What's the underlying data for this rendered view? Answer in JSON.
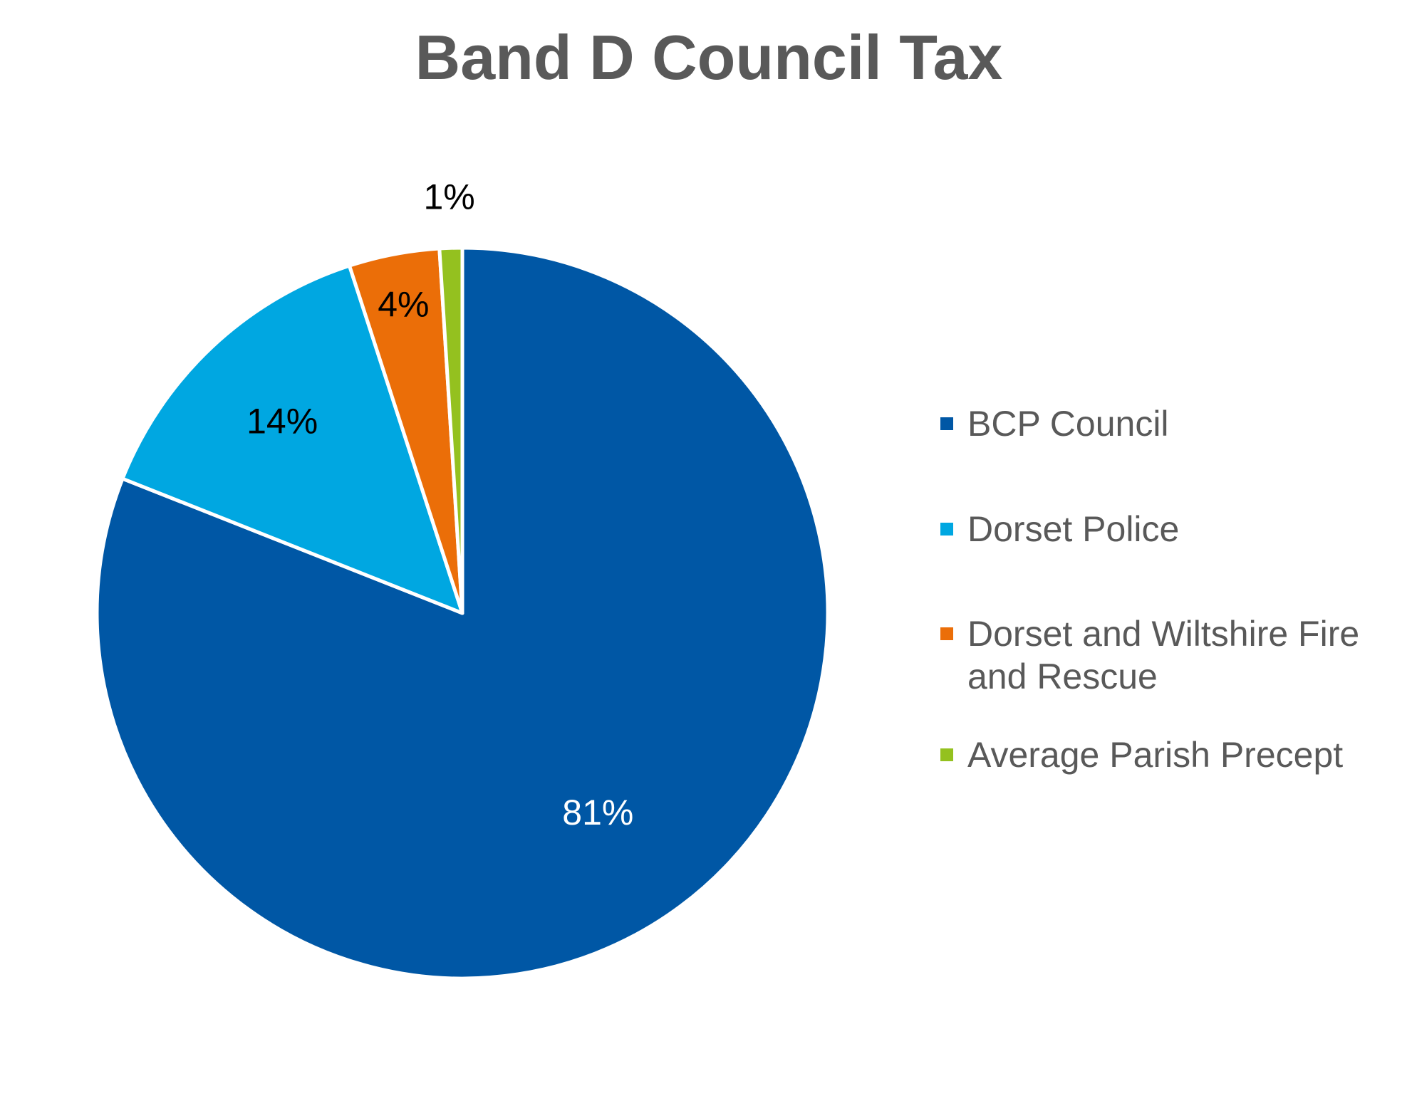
{
  "chart_data": {
    "type": "pie",
    "title": "Band D Council Tax",
    "start_angle": "12 o'clock",
    "direction": "clockwise",
    "legend_position": "right",
    "slices": [
      {
        "label": "BCP Council",
        "value": 81,
        "data_label": "81%",
        "color": "#0057A5",
        "label_color": "#ffffff"
      },
      {
        "label": "Dorset Police",
        "value": 14,
        "data_label": "14%",
        "color": "#00A7E1",
        "label_color": "#000000"
      },
      {
        "label": "Dorset and Wiltshire Fire and Rescue",
        "value": 4,
        "data_label": "4%",
        "color": "#EB6E08",
        "label_color": "#000000"
      },
      {
        "label": "Average Parish Precept",
        "value": 1,
        "data_label": "1%",
        "color": "#94C11F",
        "label_color": "#000000"
      }
    ]
  }
}
